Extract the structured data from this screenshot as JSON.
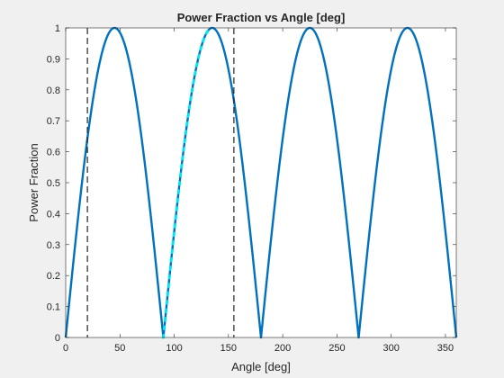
{
  "chart_data": {
    "type": "line",
    "title": "Power Fraction vs Angle [deg]",
    "xlabel": "Angle [deg]",
    "ylabel": "Power Fraction",
    "xlim": [
      0,
      360
    ],
    "ylim": [
      0,
      1
    ],
    "xticks": [
      0,
      50,
      100,
      150,
      200,
      250,
      300,
      350
    ],
    "yticks": [
      0,
      0.1,
      0.2,
      0.3,
      0.4,
      0.5,
      0.6,
      0.7,
      0.8,
      0.9,
      1
    ],
    "grid": false,
    "series": [
      {
        "style": "solid",
        "color": "#0072bd",
        "function": "abs(sin(2*angle))",
        "x": [
          0,
          10,
          20,
          30,
          40,
          45,
          50,
          60,
          70,
          80,
          90,
          100,
          110,
          120,
          130,
          135,
          140,
          150,
          160,
          170,
          180,
          190,
          200,
          210,
          220,
          225,
          230,
          240,
          250,
          260,
          270,
          280,
          290,
          300,
          310,
          315,
          320,
          330,
          340,
          350,
          360
        ],
        "y": [
          0,
          0.342,
          0.643,
          0.866,
          0.985,
          1,
          0.985,
          0.866,
          0.643,
          0.342,
          0,
          0.342,
          0.643,
          0.866,
          0.985,
          1,
          0.985,
          0.866,
          0.643,
          0.342,
          0,
          0.342,
          0.643,
          0.866,
          0.985,
          1,
          0.985,
          0.866,
          0.643,
          0.342,
          0,
          0.342,
          0.643,
          0.866,
          0.985,
          1,
          0.985,
          0.866,
          0.643,
          0.342,
          0
        ]
      },
      {
        "style": "dotted",
        "color": "#00e5ee",
        "x": [
          90,
          95,
          100,
          105,
          110,
          115,
          120,
          125,
          130,
          135
        ],
        "y": [
          0,
          0.174,
          0.342,
          0.5,
          0.643,
          0.766,
          0.866,
          0.94,
          0.985,
          1
        ]
      }
    ],
    "vlines": [
      {
        "x": 20,
        "style": "dashed",
        "color": "#262626"
      },
      {
        "x": 155,
        "style": "dashed",
        "color": "#262626"
      }
    ],
    "background": "#f0f0f0",
    "axes_background": "#ffffff"
  }
}
